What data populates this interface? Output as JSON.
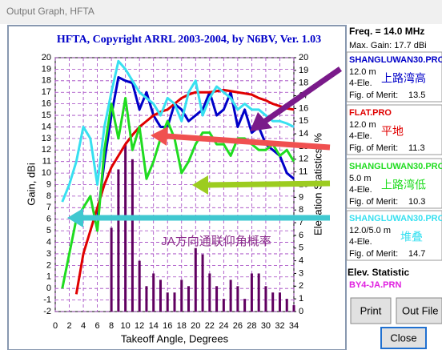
{
  "window_title": "Output Graph, HFTA",
  "chart_data": {
    "type": "line",
    "title": "HFTA, Copyright ARRL 2003-2004, by N6BV, Ver. 1.03",
    "x_label": "Takeoff Angle, Degrees",
    "y_label": "Gain, dBi",
    "y2_label": "Elevation Statistics, %",
    "annotation": "JA方向通联仰角概率",
    "x": [
      1,
      2,
      3,
      4,
      5,
      6,
      7,
      8,
      9,
      10,
      11,
      12,
      13,
      14,
      15,
      16,
      17,
      18,
      19,
      20,
      21,
      22,
      23,
      24,
      25,
      26,
      27,
      28,
      29,
      30,
      31,
      32,
      33,
      34
    ],
    "xlim": [
      0,
      34
    ],
    "xticks": [
      0,
      2,
      4,
      6,
      8,
      10,
      12,
      14,
      16,
      18,
      20,
      22,
      24,
      26,
      28,
      30,
      32,
      34
    ],
    "ylim": [
      -2,
      20
    ],
    "yticks": [
      -2,
      -1,
      0,
      1,
      2,
      3,
      4,
      5,
      6,
      7,
      8,
      9,
      10,
      11,
      12,
      13,
      14,
      15,
      16,
      17,
      18,
      19,
      20
    ],
    "y2lim": [
      0,
      20
    ],
    "y2ticks": [
      0,
      1,
      2,
      3,
      4,
      5,
      6,
      7,
      8,
      9,
      10,
      11,
      12,
      13,
      14,
      15,
      16,
      17,
      18,
      19,
      20
    ],
    "grid": true,
    "series": [
      {
        "name": "SHANGLUWAN30.PRO",
        "color": "#0000c8",
        "height": "12.0 m",
        "antenna": "4-Ele.",
        "merit_label": "Fig. of Merit:",
        "merit": 13.5,
        "note": "上路湾高",
        "values": [
          null,
          null,
          null,
          null,
          null,
          6,
          11,
          15,
          18.3,
          18,
          17.8,
          15.5,
          17,
          15,
          14,
          14,
          16,
          15.5,
          14.5,
          15,
          15.5,
          17,
          15,
          15.5,
          17,
          14,
          15.5,
          13.5,
          14,
          12.5,
          12,
          11.5,
          10,
          9.5
        ]
      },
      {
        "name": "FLAT.PRO",
        "color": "#e00000",
        "height": "12.0 m",
        "antenna": "4-Ele.",
        "merit_label": "Fig. of Merit:",
        "merit": 11.3,
        "note": "平地",
        "values": [
          null,
          null,
          -0.5,
          3,
          5,
          7,
          9,
          10.5,
          11.5,
          12.5,
          13.3,
          14,
          14.5,
          15,
          15.3,
          15.5,
          16,
          16.5,
          16.8,
          17,
          17,
          17,
          17.1,
          17.2,
          17.1,
          17,
          16.9,
          16.8,
          16.5,
          16.3,
          16,
          15.8,
          15.6,
          15.5
        ]
      },
      {
        "name": "SHANGLUWAN30.PRO",
        "color": "#20dc20",
        "height": "5.0 m",
        "antenna": "4-Ele.",
        "merit_label": "Fig. of Merit:",
        "merit": 10.3,
        "note": "上路湾低",
        "values": [
          0,
          3,
          6,
          7,
          8,
          5,
          12,
          16,
          13,
          16.5,
          12,
          14,
          9.5,
          11,
          13,
          14.5,
          13,
          10,
          11,
          12.5,
          13.5,
          13.5,
          12.5,
          12.5,
          11.5,
          13,
          13,
          12.5,
          12,
          12,
          12.5,
          11.5,
          12,
          11
        ]
      },
      {
        "name": "SHANGLUWAN30.PRO",
        "color": "#38e0f0",
        "height": "12.0/5.0 m",
        "antenna": "4-Ele.",
        "merit_label": "Fig. of Merit:",
        "merit": 14.7,
        "note": "堆叠",
        "values": [
          7.5,
          9,
          11,
          14,
          13,
          9,
          14,
          17,
          19.7,
          19,
          18,
          17,
          16.5,
          16,
          15,
          16.5,
          16,
          14.5,
          17,
          18,
          15,
          16.5,
          17.5,
          17,
          16.5,
          15.5,
          16,
          15.5,
          15.5,
          15,
          14.5,
          14.5,
          14.3,
          14
        ]
      },
      {
        "name": "BY4-JA.PRN",
        "color": "#600060",
        "type": "bar",
        "axis": "y2",
        "values": [
          null,
          null,
          null,
          null,
          null,
          null,
          null,
          6.6,
          11.2,
          13.2,
          12,
          4,
          2,
          3,
          2.5,
          1.5,
          1.5,
          2.5,
          2,
          5,
          4.5,
          3,
          2,
          1,
          2.5,
          2,
          1,
          3,
          3,
          2,
          1.5,
          1.5,
          1,
          0.5
        ]
      }
    ]
  },
  "panel": {
    "freq": "Freq. = 14.0 MHz",
    "max_gain": "Max. Gain: 17.7 dBi",
    "elev_title": "Elev. Statistic"
  },
  "buttons": [
    "Print",
    "Out File",
    "Close"
  ]
}
